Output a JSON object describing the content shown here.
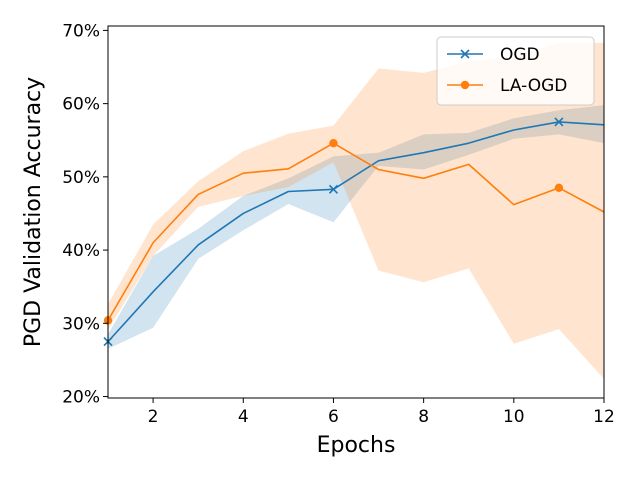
{
  "chart_data": {
    "type": "line",
    "xlabel": "Epochs",
    "ylabel": "PGD Validation Accuracy",
    "xlim": [
      1,
      12
    ],
    "ylim": [
      19.8,
      70.6
    ],
    "xticks": [
      2,
      4,
      6,
      8,
      10,
      12
    ],
    "yticks": [
      20,
      30,
      40,
      50,
      60,
      70
    ],
    "ytick_suffix": "%",
    "grid": false,
    "legend_position": "top-right",
    "x": [
      1,
      2,
      3,
      4,
      5,
      6,
      7,
      8,
      9,
      10,
      11,
      12
    ],
    "series": [
      {
        "name": "OGD",
        "color": "#1f77b4",
        "marker": "x",
        "marker_every": 5,
        "values": [
          27.5,
          34.3,
          40.7,
          45.0,
          48.0,
          48.3,
          52.2,
          53.3,
          54.6,
          56.4,
          57.5,
          57.1
        ],
        "band_lower": [
          26.5,
          29.4,
          38.8,
          42.7,
          46.3,
          43.8,
          51.5,
          51.0,
          53.0,
          55.2,
          55.8,
          54.6
        ],
        "band_upper": [
          28.5,
          39.2,
          42.9,
          47.4,
          49.8,
          52.8,
          53.3,
          55.8,
          56.0,
          58.0,
          59.1,
          59.8
        ]
      },
      {
        "name": "LA-OGD",
        "color": "#ff7f0e",
        "marker": "o",
        "marker_every": 5,
        "values": [
          30.4,
          41.0,
          47.6,
          50.5,
          51.1,
          54.6,
          51.0,
          49.8,
          51.7,
          46.2,
          48.5,
          45.2
        ],
        "band_lower": [
          29.1,
          39.2,
          45.9,
          47.4,
          48.6,
          52.0,
          37.2,
          35.6,
          37.5,
          27.2,
          29.2,
          22.4
        ],
        "band_upper": [
          32.6,
          43.5,
          49.4,
          53.5,
          55.9,
          57.0,
          64.8,
          64.2,
          65.8,
          66.3,
          68.3,
          68.3
        ]
      }
    ]
  }
}
